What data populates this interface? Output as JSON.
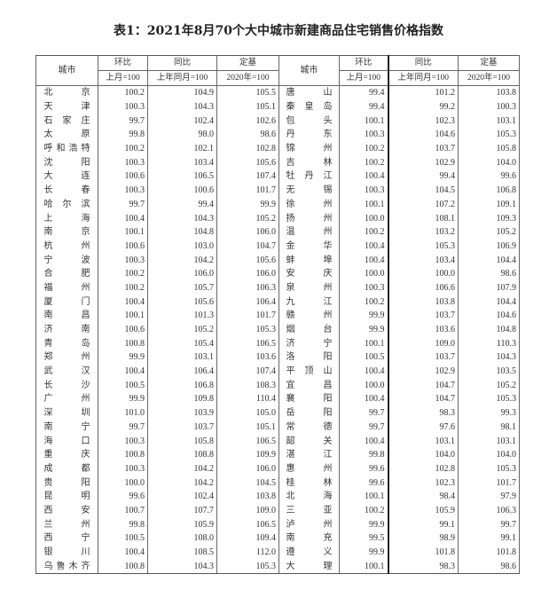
{
  "title": "表1：2021年8月70个大中城市新建商品住宅销售价格指数",
  "headers": {
    "city": "城市",
    "mom": "环比",
    "yoy": "同比",
    "base": "定基",
    "mom_sub": "上月=100",
    "yoy_sub": "上年同月=100",
    "base_sub": "2020年=100"
  },
  "left": [
    [
      "北京",
      "100.2",
      "104.9",
      "105.5"
    ],
    [
      "天津",
      "100.3",
      "104.3",
      "105.1"
    ],
    [
      "石家庄",
      "99.7",
      "102.4",
      "102.6"
    ],
    [
      "太原",
      "99.8",
      "98.0",
      "98.6"
    ],
    [
      "呼和浩特",
      "100.2",
      "102.1",
      "102.8"
    ],
    [
      "沈阳",
      "100.3",
      "103.4",
      "105.6"
    ],
    [
      "大连",
      "100.6",
      "106.5",
      "107.4"
    ],
    [
      "长春",
      "100.3",
      "100.6",
      "101.7"
    ],
    [
      "哈尔滨",
      "99.7",
      "99.4",
      "99.9"
    ],
    [
      "上海",
      "100.4",
      "104.3",
      "105.2"
    ],
    [
      "南京",
      "100.1",
      "104.8",
      "106.0"
    ],
    [
      "杭州",
      "100.6",
      "103.0",
      "104.7"
    ],
    [
      "宁波",
      "100.3",
      "104.2",
      "105.6"
    ],
    [
      "合肥",
      "100.2",
      "106.0",
      "106.0"
    ],
    [
      "福州",
      "100.2",
      "105.7",
      "106.3"
    ],
    [
      "厦门",
      "100.4",
      "105.6",
      "106.4"
    ],
    [
      "南昌",
      "100.1",
      "101.3",
      "101.7"
    ],
    [
      "济南",
      "100.6",
      "105.2",
      "105.3"
    ],
    [
      "青岛",
      "100.8",
      "105.4",
      "106.5"
    ],
    [
      "郑州",
      "99.9",
      "103.1",
      "103.6"
    ],
    [
      "武汉",
      "100.4",
      "106.4",
      "107.4"
    ],
    [
      "长沙",
      "100.5",
      "106.8",
      "108.3"
    ],
    [
      "广州",
      "99.9",
      "109.8",
      "110.4"
    ],
    [
      "深圳",
      "101.0",
      "103.9",
      "105.0"
    ],
    [
      "南宁",
      "99.7",
      "103.7",
      "105.1"
    ],
    [
      "海口",
      "100.3",
      "105.8",
      "106.5"
    ],
    [
      "重庆",
      "100.8",
      "108.8",
      "109.9"
    ],
    [
      "成都",
      "100.3",
      "104.2",
      "106.0"
    ],
    [
      "贵阳",
      "100.0",
      "104.2",
      "104.5"
    ],
    [
      "昆明",
      "99.6",
      "102.4",
      "103.8"
    ],
    [
      "西安",
      "100.7",
      "107.7",
      "109.0"
    ],
    [
      "兰州",
      "99.8",
      "105.9",
      "106.5"
    ],
    [
      "西宁",
      "100.5",
      "108.0",
      "109.4"
    ],
    [
      "银川",
      "100.4",
      "108.5",
      "112.0"
    ],
    [
      "乌鲁木齐",
      "100.8",
      "104.3",
      "105.3"
    ]
  ],
  "right": [
    [
      "唐山",
      "99.4",
      "101.2",
      "103.8"
    ],
    [
      "秦皇岛",
      "99.4",
      "99.2",
      "100.3"
    ],
    [
      "包头",
      "100.1",
      "102.3",
      "103.1"
    ],
    [
      "丹东",
      "100.3",
      "104.6",
      "105.3"
    ],
    [
      "锦州",
      "100.2",
      "103.7",
      "105.8"
    ],
    [
      "吉林",
      "100.2",
      "102.9",
      "104.0"
    ],
    [
      "牡丹江",
      "100.4",
      "99.4",
      "99.6"
    ],
    [
      "无锡",
      "100.3",
      "104.5",
      "106.8"
    ],
    [
      "徐州",
      "100.1",
      "107.2",
      "109.1"
    ],
    [
      "扬州",
      "100.0",
      "108.1",
      "109.3"
    ],
    [
      "温州",
      "100.2",
      "103.2",
      "105.2"
    ],
    [
      "金华",
      "100.4",
      "105.3",
      "106.9"
    ],
    [
      "蚌埠",
      "100.4",
      "103.4",
      "104.4"
    ],
    [
      "安庆",
      "100.0",
      "100.0",
      "98.6"
    ],
    [
      "泉州",
      "100.3",
      "106.6",
      "107.9"
    ],
    [
      "九江",
      "100.2",
      "103.8",
      "104.4"
    ],
    [
      "赣州",
      "99.9",
      "103.7",
      "104.6"
    ],
    [
      "烟台",
      "99.9",
      "103.6",
      "104.8"
    ],
    [
      "济宁",
      "100.1",
      "109.0",
      "110.3"
    ],
    [
      "洛阳",
      "100.5",
      "103.7",
      "104.3"
    ],
    [
      "平顶山",
      "100.4",
      "102.9",
      "103.5"
    ],
    [
      "宜昌",
      "100.0",
      "104.7",
      "105.2"
    ],
    [
      "襄阳",
      "100.4",
      "104.7",
      "105.3"
    ],
    [
      "岳阳",
      "99.7",
      "98.3",
      "99.3"
    ],
    [
      "常德",
      "99.7",
      "97.6",
      "98.1"
    ],
    [
      "韶关",
      "100.4",
      "103.1",
      "103.1"
    ],
    [
      "湛江",
      "99.8",
      "104.0",
      "104.0"
    ],
    [
      "惠州",
      "99.6",
      "102.8",
      "105.3"
    ],
    [
      "桂林",
      "99.6",
      "102.3",
      "101.7"
    ],
    [
      "北海",
      "100.1",
      "98.4",
      "97.9"
    ],
    [
      "三亚",
      "100.2",
      "105.9",
      "106.3"
    ],
    [
      "泸州",
      "99.9",
      "99.1",
      "99.7"
    ],
    [
      "南充",
      "99.5",
      "98.9",
      "99.1"
    ],
    [
      "遵义",
      "99.9",
      "101.8",
      "101.8"
    ],
    [
      "大理",
      "100.1",
      "98.3",
      "98.6"
    ]
  ]
}
